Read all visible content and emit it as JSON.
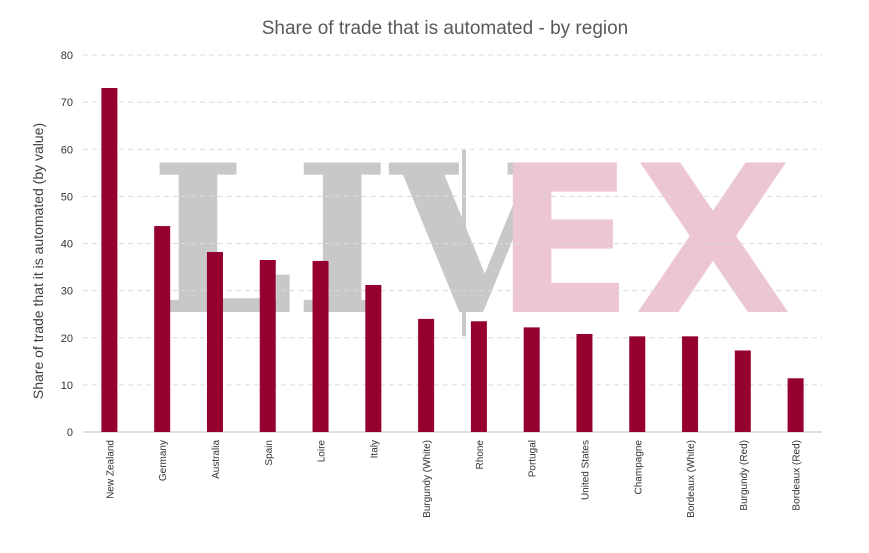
{
  "watermark": {
    "left_text": "LIV",
    "right_text": "EX"
  },
  "chart_data": {
    "type": "bar",
    "title": "Share of trade that is automated - by region",
    "xlabel": "",
    "ylabel": "Share of trade that it is automated (by value)",
    "ylim": [
      0,
      80
    ],
    "yticks": [
      0,
      10,
      20,
      30,
      40,
      50,
      60,
      70,
      80
    ],
    "grid": true,
    "bar_color": "#96002f",
    "categories": [
      "New Zealand",
      "Germany",
      "Australia",
      "Spain",
      "Loire",
      "Italy",
      "Burgundy (White)",
      "Rhone",
      "Portugal",
      "United States",
      "Champagne",
      "Bordeaux (White)",
      "Burgundy (Red)",
      "Bordeaux (Red)"
    ],
    "values": [
      73,
      43.7,
      38.2,
      36.5,
      36.3,
      31.2,
      24.0,
      23.5,
      22.2,
      20.8,
      20.3,
      20.3,
      17.3,
      11.4
    ]
  }
}
